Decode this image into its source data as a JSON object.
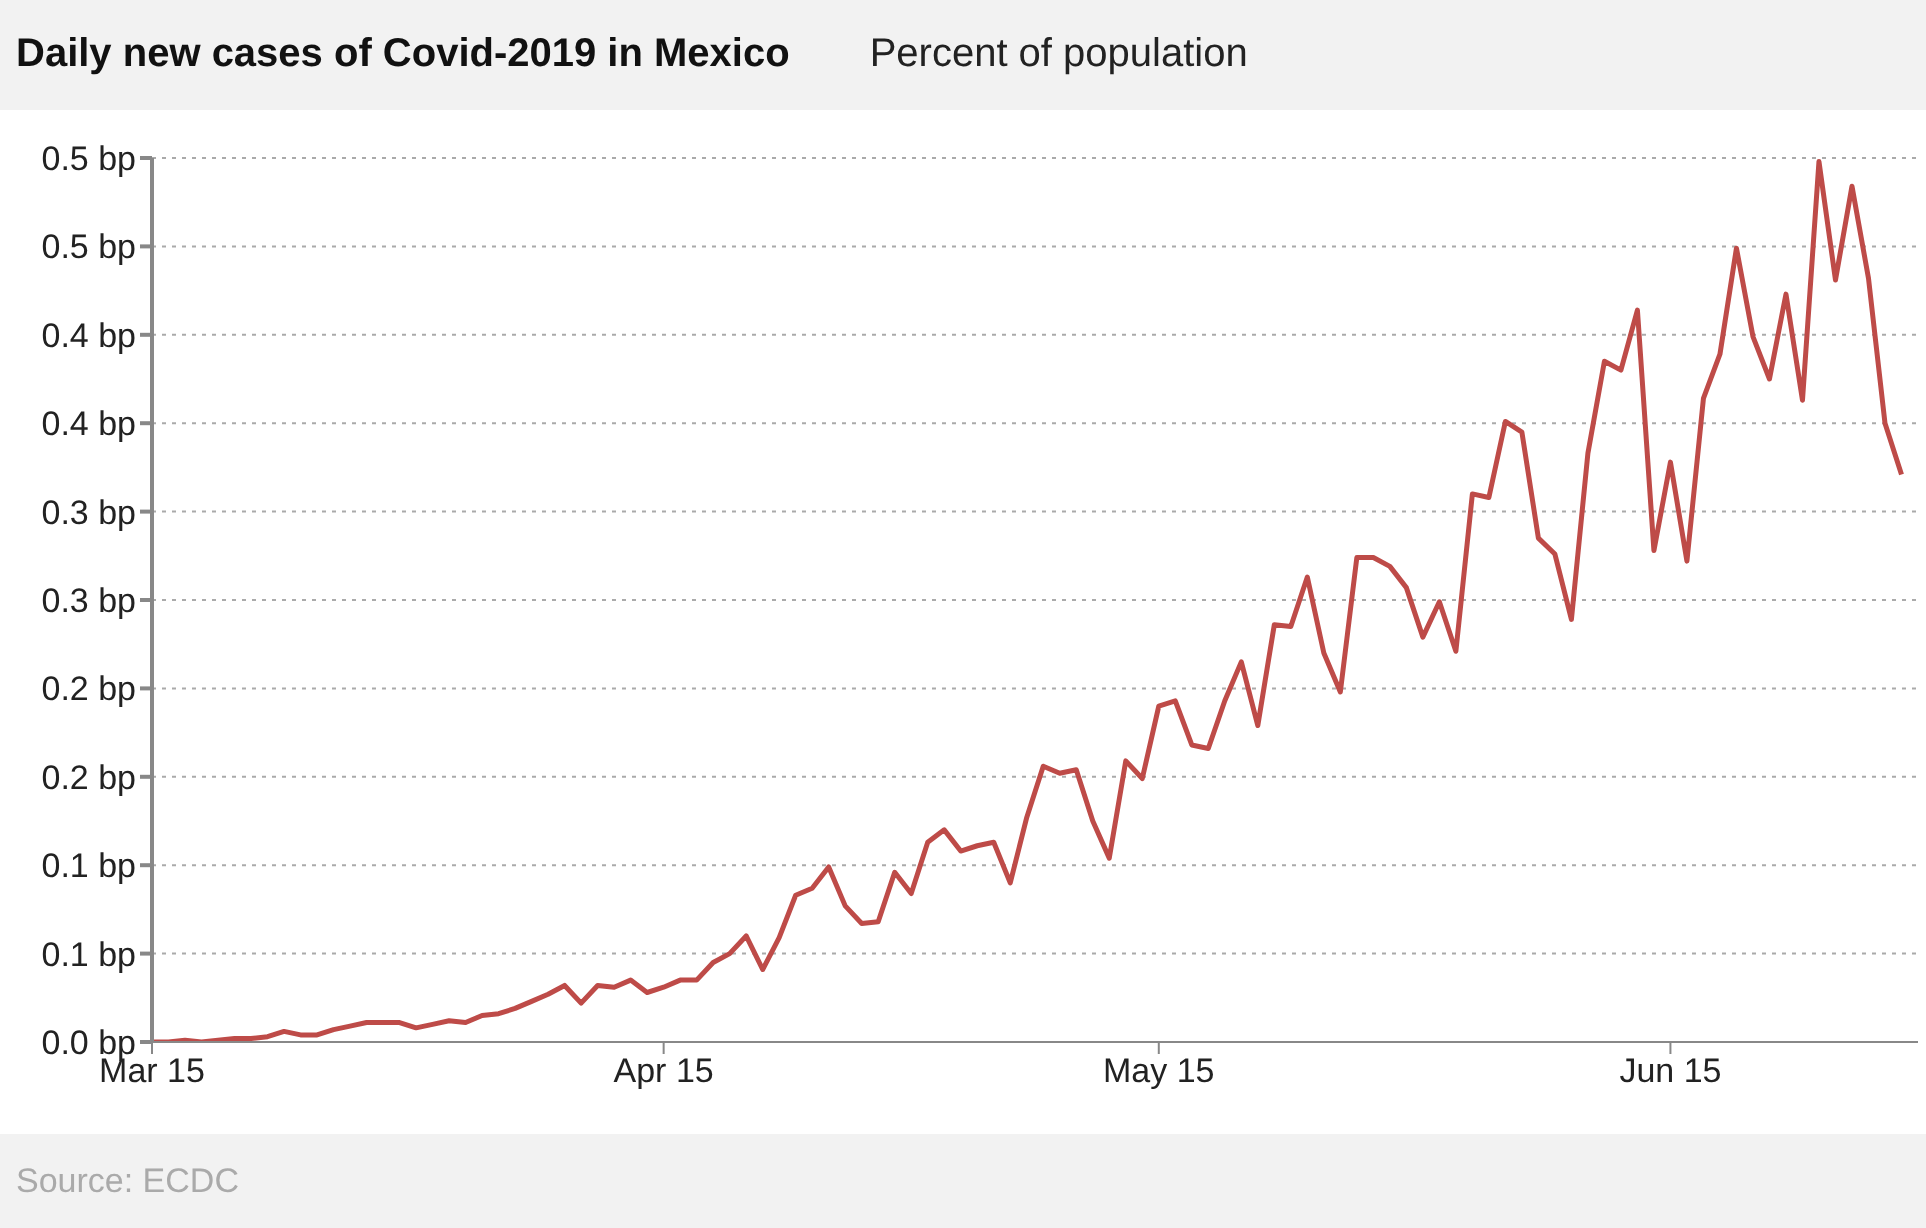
{
  "chart_data": {
    "type": "line",
    "title": "Daily new cases of Covid-2019 in Mexico",
    "subtitle": "Percent of population",
    "annotations": [
      "Source: ECDC"
    ],
    "x": [
      "--03-15",
      "--03-16",
      "--03-17",
      "--03-18",
      "--03-19",
      "--03-20",
      "--03-21",
      "--03-22",
      "--03-23",
      "--03-24",
      "--03-25",
      "--03-26",
      "--03-27",
      "--03-28",
      "--03-29",
      "--03-30",
      "--03-31",
      "--04-01",
      "--04-02",
      "--04-03",
      "--04-04",
      "--04-05",
      "--04-06",
      "--04-07",
      "--04-08",
      "--04-09",
      "--04-10",
      "--04-11",
      "--04-12",
      "--04-13",
      "--04-14",
      "--04-15",
      "--04-16",
      "--04-17",
      "--04-18",
      "--04-19",
      "--04-20",
      "--04-21",
      "--04-22",
      "--04-23",
      "--04-24",
      "--04-25",
      "--04-26",
      "--04-27",
      "--04-28",
      "--04-29",
      "--04-30",
      "--05-01",
      "--05-02",
      "--05-03",
      "--05-04",
      "--05-05",
      "--05-06",
      "--05-07",
      "--05-08",
      "--05-09",
      "--05-10",
      "--05-11",
      "--05-12",
      "--05-13",
      "--05-14",
      "--05-15",
      "--05-16",
      "--05-17",
      "--05-18",
      "--05-19",
      "--05-20",
      "--05-21",
      "--05-22",
      "--05-23",
      "--05-24",
      "--05-25",
      "--05-26",
      "--05-27",
      "--05-28",
      "--05-29",
      "--05-30",
      "--05-31",
      "--06-01",
      "--06-02",
      "--06-03",
      "--06-04",
      "--06-05",
      "--06-06",
      "--06-07",
      "--06-08",
      "--06-09",
      "--06-10",
      "--06-11",
      "--06-12",
      "--06-13",
      "--06-14",
      "--06-15",
      "--06-16",
      "--06-17",
      "--06-18",
      "--06-19",
      "--06-20",
      "--06-21",
      "--06-22",
      "--06-23",
      "--06-24",
      "--06-25",
      "--06-26",
      "--06-27",
      "--06-28",
      "--06-29"
    ],
    "series": [
      {
        "color": "#be4b48",
        "values": [
          0,
          0,
          0.001,
          0,
          0.001,
          0.002,
          0.002,
          0.003,
          0.006,
          0.004,
          0.004,
          0.007,
          0.009,
          0.011,
          0.011,
          0.011,
          0.008,
          0.01,
          0.012,
          0.011,
          0.015,
          0.016,
          0.019,
          0.023,
          0.027,
          0.032,
          0.022,
          0.032,
          0.031,
          0.035,
          0.028,
          0.031,
          0.035,
          0.035,
          0.045,
          0.05,
          0.06,
          0.041,
          0.059,
          0.083,
          0.087,
          0.099,
          0.077,
          0.067,
          0.068,
          0.096,
          0.084,
          0.113,
          0.12,
          0.108,
          0.111,
          0.113,
          0.09,
          0.127,
          0.156,
          0.152,
          0.154,
          0.125,
          0.104,
          0.159,
          0.149,
          0.19,
          0.193,
          0.168,
          0.166,
          0.193,
          0.215,
          0.179,
          0.236,
          0.235,
          0.263,
          0.22,
          0.198,
          0.274,
          0.274,
          0.269,
          0.257,
          0.229,
          0.249,
          0.221,
          0.31,
          0.308,
          0.351,
          0.345,
          0.285,
          0.276,
          0.239,
          0.333,
          0.385,
          0.38,
          0.414,
          0.278,
          0.328,
          0.272,
          0.364,
          0.389,
          0.449,
          0.399,
          0.375,
          0.423,
          0.363,
          0.498,
          0.431,
          0.484,
          0.432,
          0.35,
          0.321
        ]
      }
    ],
    "xlim": [
      "--03-15",
      "--06-30"
    ],
    "xticks": [
      {
        "value": "--03-15",
        "label": "Mar 15"
      },
      {
        "value": "--04-15",
        "label": "Apr 15"
      },
      {
        "value": "--05-15",
        "label": "May 15"
      },
      {
        "value": "--06-15",
        "label": "Jun 15"
      }
    ],
    "ylim": [
      0,
      0.5
    ],
    "yticks": [
      {
        "value": 0,
        "label": "0.0 bp"
      },
      {
        "value": 0.05,
        "label": "0.1 bp"
      },
      {
        "value": 0.1,
        "label": "0.1 bp"
      },
      {
        "value": 0.15,
        "label": "0.2 bp"
      },
      {
        "value": 0.2,
        "label": "0.2 bp"
      },
      {
        "value": 0.25,
        "label": "0.3 bp"
      },
      {
        "value": 0.3,
        "label": "0.3 bp"
      },
      {
        "value": 0.35,
        "label": "0.4 bp"
      },
      {
        "value": 0.4,
        "label": "0.4 bp"
      },
      {
        "value": 0.45,
        "label": "0.5 bp"
      },
      {
        "value": 0.5,
        "label": "0.5 bp"
      }
    ],
    "grid": "y"
  }
}
